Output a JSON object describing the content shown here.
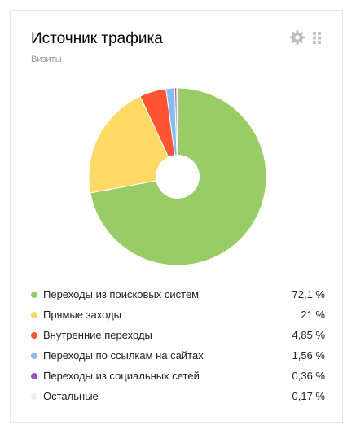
{
  "widget": {
    "title": "Источник трафика",
    "subtitle": "Визиты",
    "settings_icon": "gear-icon",
    "drag_icon": "drag-handle-icon"
  },
  "chart_data": {
    "type": "pie",
    "title": "Источник трафика",
    "subtitle": "Визиты",
    "donut": true,
    "legend_position": "bottom",
    "slices": [
      {
        "label": "Переходы из поисковых систем",
        "value": 72.1,
        "value_label": "72,1 %",
        "color": "#99cc66"
      },
      {
        "label": "Прямые заходы",
        "value": 21,
        "value_label": "21 %",
        "color": "#ffd966"
      },
      {
        "label": "Внутренние переходы",
        "value": 4.85,
        "value_label": "4,85 %",
        "color": "#ff5533"
      },
      {
        "label": "Переходы по ссылкам на сайтах",
        "value": 1.56,
        "value_label": "1,56 %",
        "color": "#88bbee"
      },
      {
        "label": "Переходы из социальных сетей",
        "value": 0.36,
        "value_label": "0,36 %",
        "color": "#9955bb"
      },
      {
        "label": "Остальные",
        "value": 0.17,
        "value_label": "0,17 %",
        "color": "#eeeeee"
      }
    ]
  }
}
